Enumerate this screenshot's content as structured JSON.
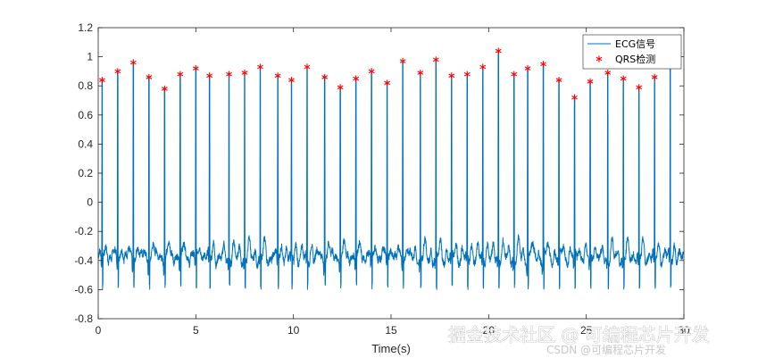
{
  "chart_data": {
    "type": "line",
    "title": "",
    "xlabel": "Time(s)",
    "ylabel": "",
    "xlim": [
      0,
      30
    ],
    "ylim": [
      -0.8,
      1.2
    ],
    "xticks": [
      0,
      5,
      10,
      15,
      20,
      25,
      30
    ],
    "yticks": [
      -0.8,
      -0.6,
      -0.4,
      -0.2,
      0,
      0.2,
      0.4,
      0.6,
      0.8,
      1,
      1.2
    ],
    "grid": false,
    "legend_position": "top-right",
    "series": [
      {
        "name": "ECG信号",
        "kind": "line",
        "color": "#0072BD",
        "baseline": -0.38,
        "trough": -0.55,
        "min": -0.67,
        "peak_times": [
          0.2,
          1.0,
          1.8,
          2.6,
          3.4,
          4.2,
          5.0,
          5.7,
          6.7,
          7.5,
          8.3,
          9.2,
          9.9,
          10.7,
          11.6,
          12.4,
          13.2,
          14.0,
          14.8,
          15.6,
          16.5,
          17.3,
          18.1,
          18.9,
          19.7,
          20.5,
          21.3,
          22.0,
          22.8,
          23.6,
          24.4,
          25.2,
          26.1,
          26.9,
          27.7,
          28.5,
          29.3
        ],
        "peak_values": [
          0.84,
          0.9,
          0.96,
          0.86,
          0.78,
          0.88,
          0.92,
          0.87,
          0.88,
          0.89,
          0.93,
          0.87,
          0.84,
          0.93,
          0.86,
          0.79,
          0.85,
          0.9,
          0.82,
          0.97,
          0.89,
          0.98,
          0.87,
          0.88,
          0.93,
          1.04,
          0.88,
          0.92,
          0.95,
          0.84,
          0.72,
          0.83,
          0.89,
          0.85,
          0.79,
          0.86,
          0.96
        ]
      },
      {
        "name": "QRS检测",
        "kind": "markers",
        "marker": "*",
        "color": "#FF0000"
      }
    ]
  },
  "watermark": {
    "main": "掘金技术社区 @ 可编程芯片开发",
    "sub": "CSDN @可编程芯片开发"
  }
}
